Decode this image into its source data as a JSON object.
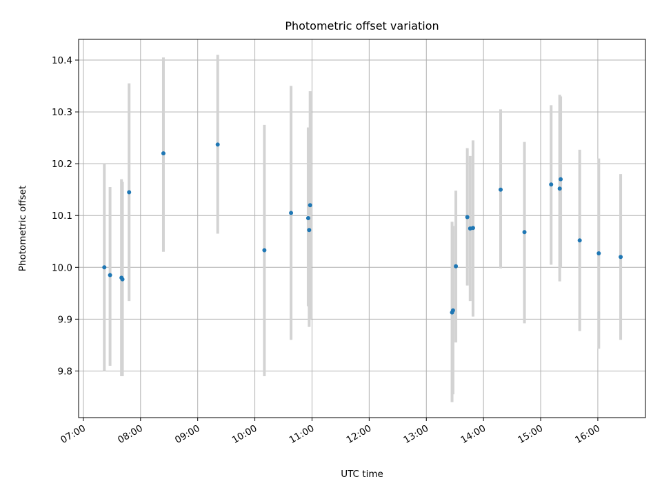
{
  "chart_data": {
    "type": "scatter",
    "title": "Photometric offset variation",
    "xlabel": "UTC time",
    "ylabel": "Photometric offset",
    "x_ticks": [
      "07:00",
      "08:00",
      "09:00",
      "10:00",
      "11:00",
      "12:00",
      "13:00",
      "14:00",
      "15:00",
      "16:00"
    ],
    "y_ticks": [
      "9.8",
      "9.9",
      "10.0",
      "10.1",
      "10.2",
      "10.3",
      "10.4"
    ],
    "xlim": [
      "06:55",
      "16:50"
    ],
    "ylim": [
      9.71,
      10.44
    ],
    "grid": true,
    "colors": {
      "points": "#1f77b4",
      "errorbars": "#d3d3d3",
      "grid": "#b0b0b0"
    },
    "points": [
      {
        "x": "07:22",
        "y": 10.0,
        "yerr_low": 9.8,
        "yerr_high": 10.2
      },
      {
        "x": "07:28",
        "y": 9.985,
        "yerr_low": 9.81,
        "yerr_high": 10.155
      },
      {
        "x": "07:40",
        "y": 9.98,
        "yerr_low": 9.79,
        "yerr_high": 10.17
      },
      {
        "x": "07:41",
        "y": 9.977,
        "yerr_low": 9.79,
        "yerr_high": 10.165
      },
      {
        "x": "07:48",
        "y": 10.145,
        "yerr_low": 9.935,
        "yerr_high": 10.355
      },
      {
        "x": "08:24",
        "y": 10.22,
        "yerr_low": 10.03,
        "yerr_high": 10.405
      },
      {
        "x": "09:21",
        "y": 10.237,
        "yerr_low": 10.065,
        "yerr_high": 10.41
      },
      {
        "x": "10:10",
        "y": 10.033,
        "yerr_low": 9.79,
        "yerr_high": 10.275
      },
      {
        "x": "10:38",
        "y": 10.105,
        "yerr_low": 9.86,
        "yerr_high": 10.35
      },
      {
        "x": "10:56",
        "y": 10.095,
        "yerr_low": 9.925,
        "yerr_high": 10.27
      },
      {
        "x": "10:57",
        "y": 10.072,
        "yerr_low": 9.885,
        "yerr_high": 10.26
      },
      {
        "x": "10:58",
        "y": 10.12,
        "yerr_low": 9.9,
        "yerr_high": 10.34
      },
      {
        "x": "13:27",
        "y": 9.913,
        "yerr_low": 9.74,
        "yerr_high": 10.088
      },
      {
        "x": "13:28",
        "y": 9.917,
        "yerr_low": 9.755,
        "yerr_high": 10.08
      },
      {
        "x": "13:31",
        "y": 10.002,
        "yerr_low": 9.855,
        "yerr_high": 10.148
      },
      {
        "x": "13:43",
        "y": 10.097,
        "yerr_low": 9.965,
        "yerr_high": 10.23
      },
      {
        "x": "13:46",
        "y": 10.075,
        "yerr_low": 9.935,
        "yerr_high": 10.215
      },
      {
        "x": "13:49",
        "y": 10.076,
        "yerr_low": 9.905,
        "yerr_high": 10.245
      },
      {
        "x": "14:18",
        "y": 10.15,
        "yerr_low": 9.998,
        "yerr_high": 10.305
      },
      {
        "x": "14:43",
        "y": 10.068,
        "yerr_low": 9.892,
        "yerr_high": 10.242
      },
      {
        "x": "15:11",
        "y": 10.16,
        "yerr_low": 10.005,
        "yerr_high": 10.313
      },
      {
        "x": "15:20",
        "y": 10.152,
        "yerr_low": 9.973,
        "yerr_high": 10.333
      },
      {
        "x": "15:21",
        "y": 10.17,
        "yerr_low": 10.0,
        "yerr_high": 10.33
      },
      {
        "x": "15:41",
        "y": 10.052,
        "yerr_low": 9.877,
        "yerr_high": 10.227
      },
      {
        "x": "16:01",
        "y": 10.027,
        "yerr_low": 9.843,
        "yerr_high": 10.21
      },
      {
        "x": "16:24",
        "y": 10.02,
        "yerr_low": 9.86,
        "yerr_high": 10.18
      }
    ]
  }
}
